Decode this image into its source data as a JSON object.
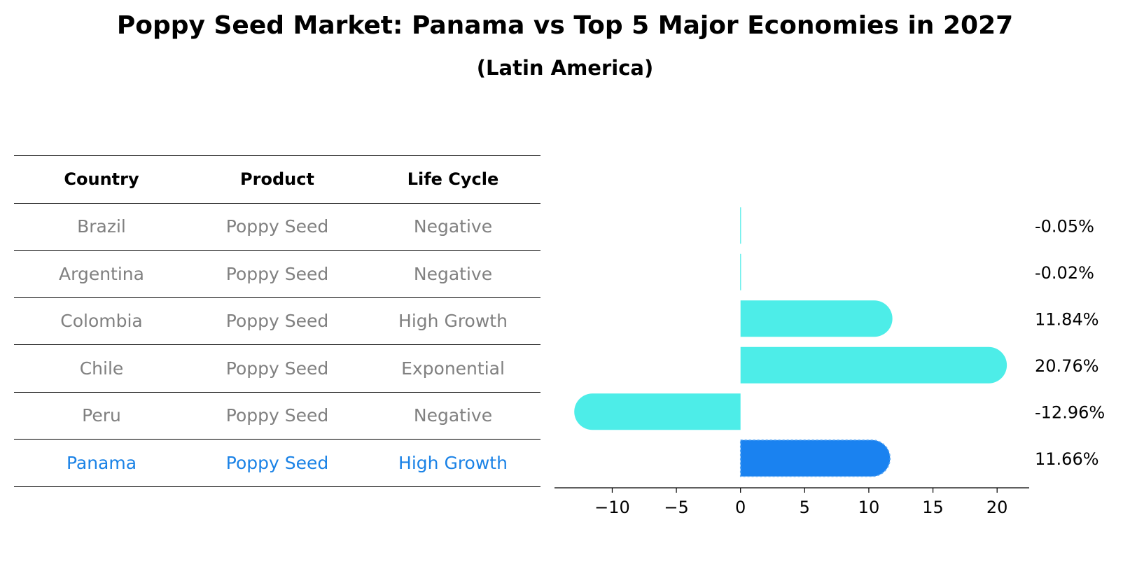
{
  "title": "Poppy Seed Market: Panama vs Top 5 Major Economies in 2027",
  "subtitle": "(Latin America)",
  "table": {
    "headers": [
      "Country",
      "Product",
      "Life Cycle"
    ],
    "rows": [
      [
        "Brazil",
        "Poppy Seed",
        "Negative"
      ],
      [
        "Argentina",
        "Poppy Seed",
        "Negative"
      ],
      [
        "Colombia",
        "Poppy Seed",
        "High Growth"
      ],
      [
        "Chile",
        "Poppy Seed",
        "Exponential"
      ],
      [
        "Peru",
        "Poppy Seed",
        "Negative"
      ],
      [
        "Panama",
        "Poppy Seed",
        "High Growth"
      ]
    ],
    "highlight_country": "Panama"
  },
  "colors": {
    "bar": "#4dede8",
    "highlight_bar": "#1a82f0",
    "row_text": "#808080",
    "highlight_text": "#1a82e6"
  },
  "chart_data": {
    "type": "bar",
    "orientation": "horizontal",
    "categories": [
      "Brazil",
      "Argentina",
      "Colombia",
      "Chile",
      "Peru",
      "Panama"
    ],
    "values": [
      -0.05,
      -0.02,
      11.84,
      20.76,
      -12.96,
      11.66
    ],
    "value_labels": [
      "-0.05%",
      "-0.02%",
      "11.84%",
      "20.76%",
      "-12.96%",
      "11.66%"
    ],
    "xlim": [
      -14.5,
      22.5
    ],
    "xticks": [
      -10,
      -5,
      0,
      5,
      10,
      15,
      20
    ],
    "xtick_labels": [
      "−10",
      "−5",
      "0",
      "5",
      "10",
      "15",
      "20"
    ],
    "highlight": "Panama",
    "grid": false
  }
}
